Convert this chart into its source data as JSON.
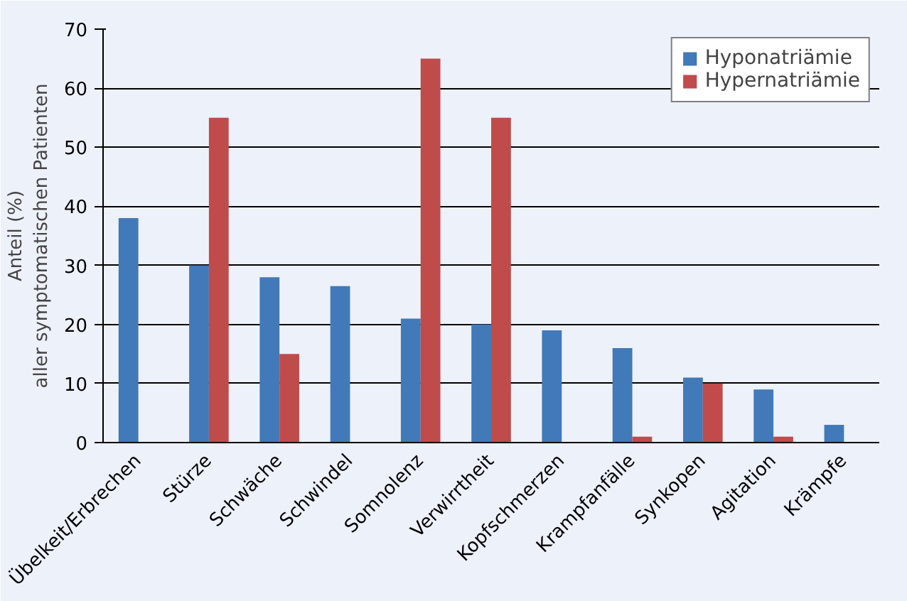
{
  "chart_data": {
    "type": "bar",
    "ylabel": "Anteil (%)\naller symptomatischen Patienten",
    "categories": [
      "Übelkeit/Erbrechen",
      "Stürze",
      "Schwäche",
      "Schwindel",
      "Somnolenz",
      "Verwirrtheit",
      "Kopfschmerzen",
      "Krampfanfälle",
      "Synkopen",
      "Agitation",
      "Krämpfe"
    ],
    "series": [
      {
        "name": "Hyponatriämie",
        "color": "#4279b8",
        "values": [
          38,
          30,
          28,
          26.5,
          21,
          20,
          19,
          16,
          11,
          9,
          3
        ]
      },
      {
        "name": "Hypernatriämie",
        "color": "#c04b4b",
        "values": [
          null,
          55,
          15,
          null,
          65,
          55,
          null,
          1,
          10,
          1,
          null
        ]
      }
    ],
    "ylim": [
      0,
      70
    ],
    "yticks": [
      0,
      10,
      20,
      30,
      40,
      50,
      60,
      70
    ],
    "grid": "y",
    "legend": "top right"
  }
}
